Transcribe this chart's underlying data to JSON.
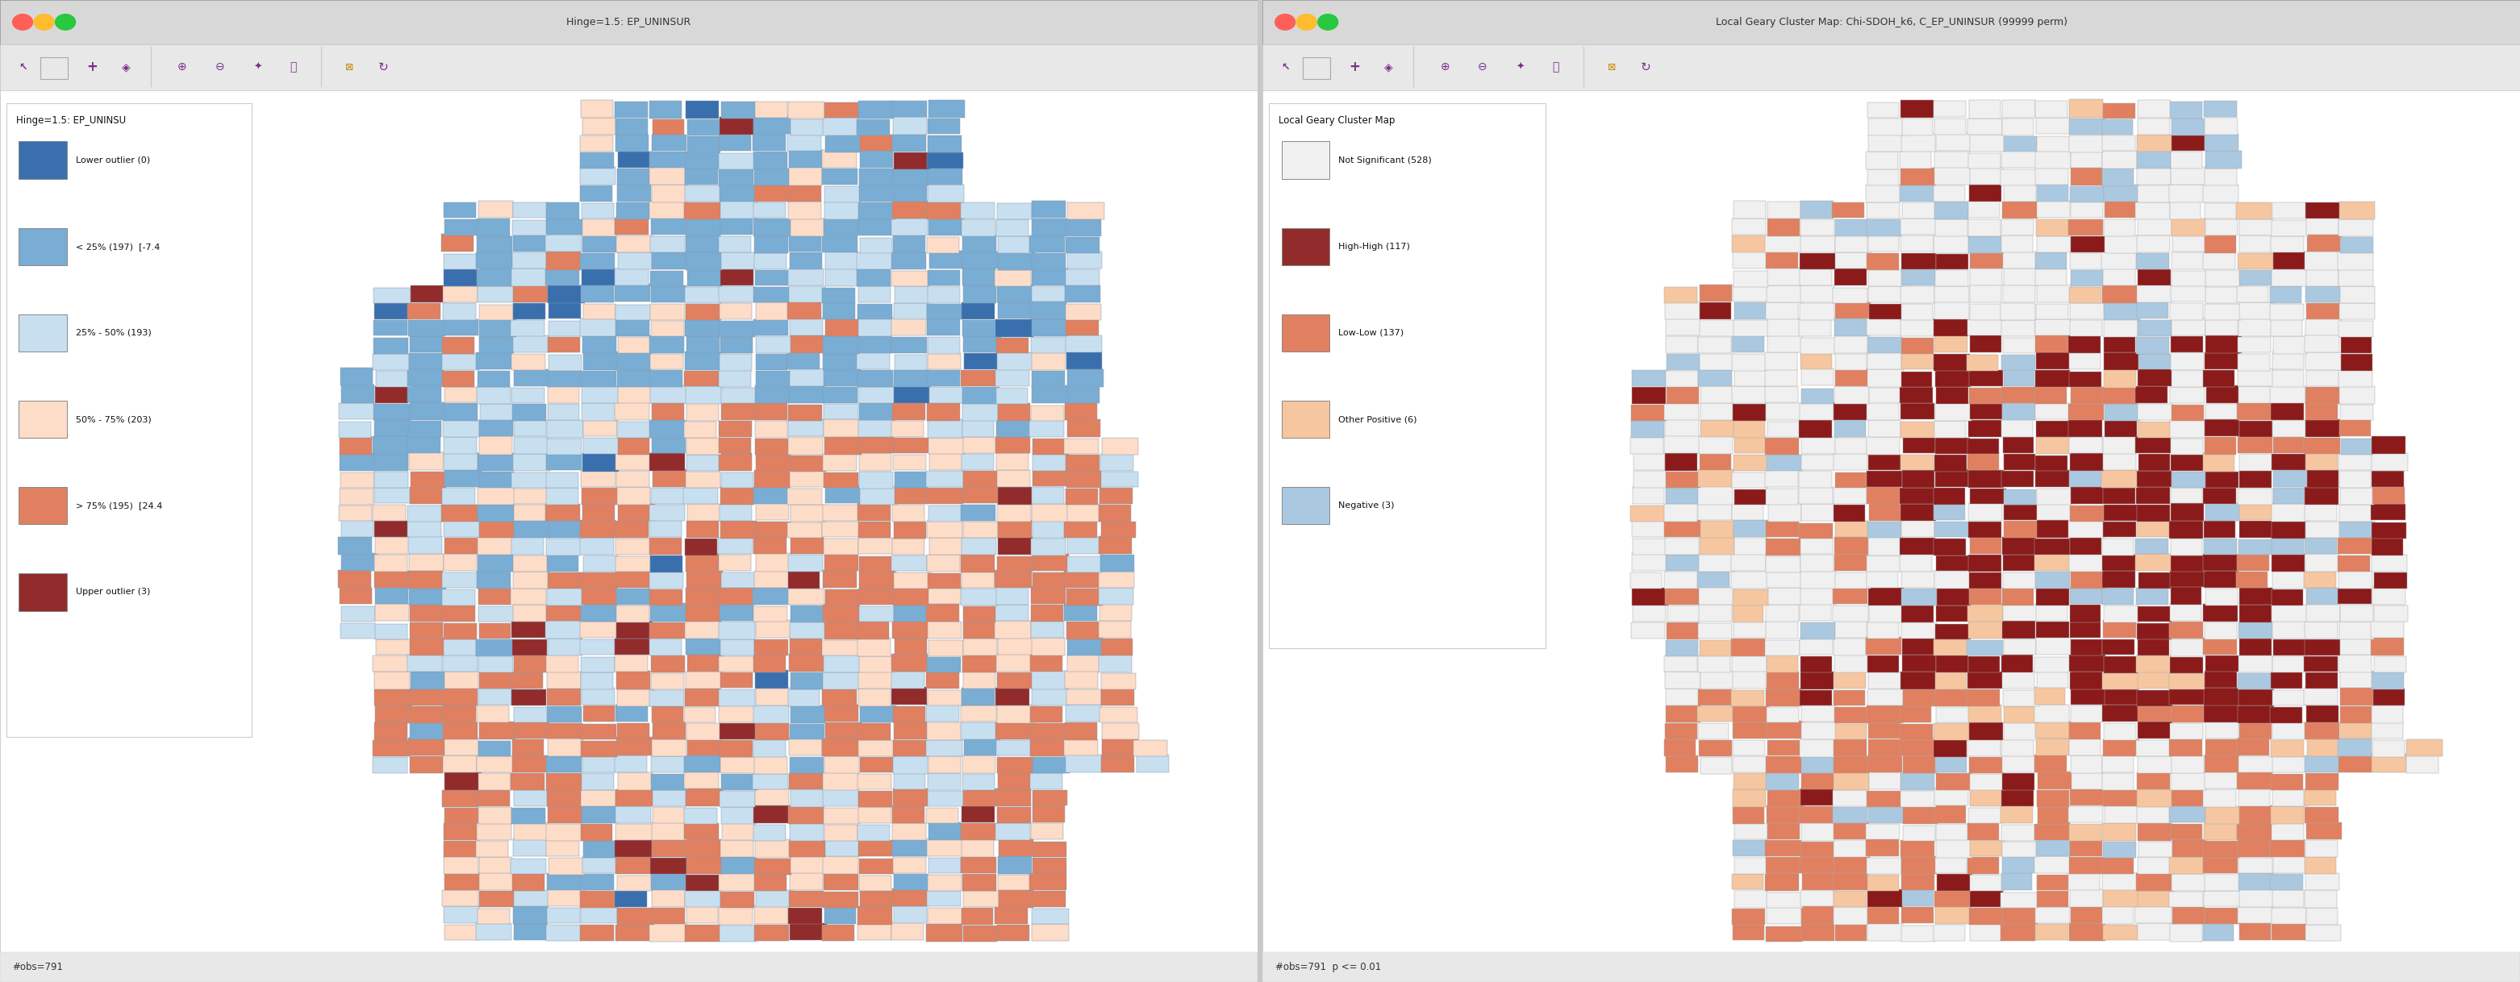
{
  "title_left": "Hinge=1.5: EP_UNINSUR",
  "title_right": "Local Geary Cluster Map: Chi-SDOH_k6, C_EP_UNINSUR (99999 perm)",
  "left_legend_title": "Hinge=1.5: EP_UNINSU",
  "right_legend_title": "Local Geary Cluster Map",
  "left_legend_items": [
    {
      "label": "Lower outlier (0)",
      "color": "#3a6fae"
    },
    {
      "label": "< 25% (197)  [-7.4",
      "color": "#7aadd4"
    },
    {
      "label": "25% - 50% (193)",
      "color": "#c8dff0"
    },
    {
      "label": "50% - 75% (203)",
      "color": "#fddcc8"
    },
    {
      "label": "> 75% (195)  [24.4",
      "color": "#e08060"
    },
    {
      "label": "Upper outlier (3)",
      "color": "#922b2b"
    }
  ],
  "right_legend_items": [
    {
      "label": "Not Significant (528)",
      "color": "#f0f0f0"
    },
    {
      "label": "High-High (117)",
      "color": "#922b2b"
    },
    {
      "label": "Low-Low (137)",
      "color": "#e08060"
    },
    {
      "label": "Other Positive (6)",
      "color": "#f5c6a0"
    },
    {
      "label": "Negative (3)",
      "color": "#aac8e0"
    }
  ],
  "bottom_left": "#obs=791",
  "bottom_right": "#obs=791  p <= 0.01",
  "window_bg": "#c8c8c8",
  "titlebar_bg": "#d8d8d8",
  "toolbar_bg": "#e8e8e8",
  "panel_bg": "#ffffff",
  "map_colors_left": {
    "lower_outlier": "#3a6fae",
    "q1": "#7aadd4",
    "q2": "#c8dff0",
    "q3": "#fddcc8",
    "q4": "#e08060",
    "upper_outlier": "#922b2b",
    "border": "#8899aa"
  },
  "map_colors_right": {
    "not_sig": "#f0f0f0",
    "high_high": "#8b1a1a",
    "low_low": "#e08060",
    "other_pos": "#f5c6a0",
    "negative": "#aac8e0",
    "border": "#aaaaaa"
  }
}
